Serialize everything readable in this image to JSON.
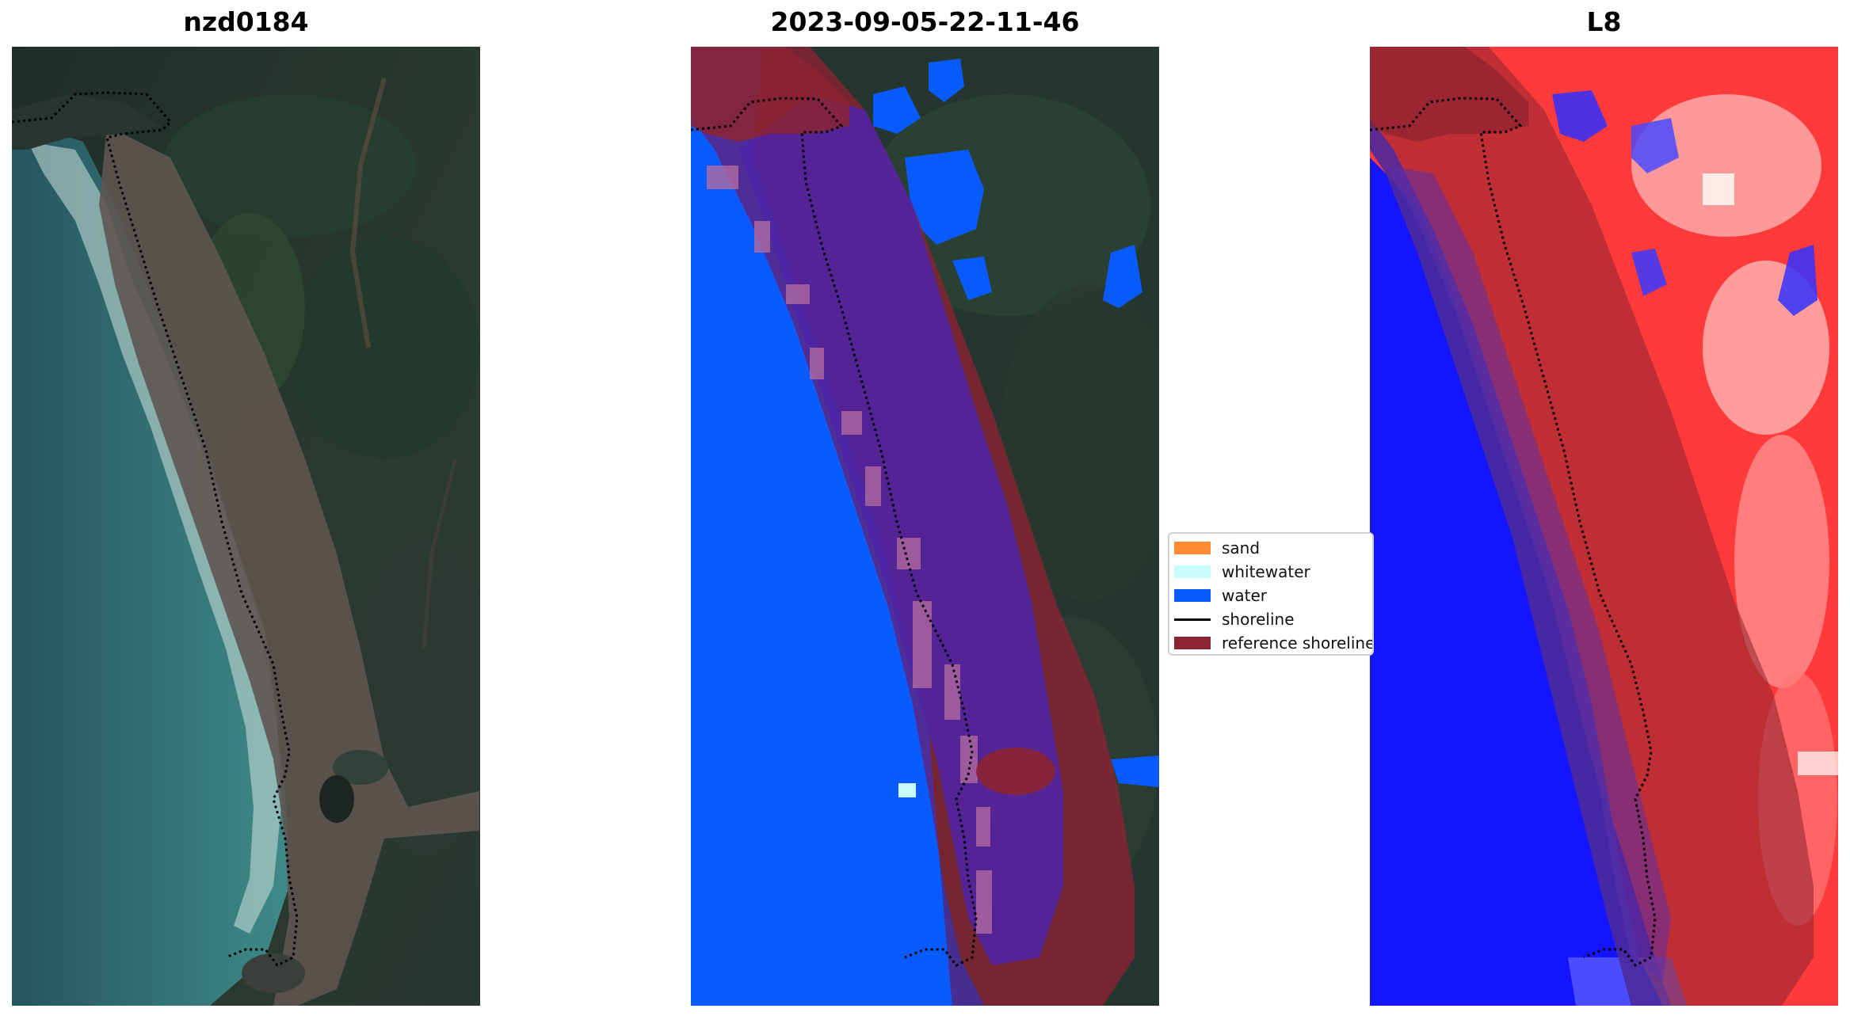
{
  "panels": [
    {
      "title": "nzd0184"
    },
    {
      "title": "2023-09-05-22-11-46"
    },
    {
      "title": "L8"
    }
  ],
  "legend": {
    "items": [
      {
        "label": "sand",
        "color": "#ff8c35"
      },
      {
        "label": "whitewater",
        "color": "#c8fcff"
      },
      {
        "label": "water",
        "color": "#0a5bff"
      },
      {
        "label": "shoreline",
        "color": "#000000"
      },
      {
        "label": "reference shoreline",
        "color": "#8b2332"
      }
    ]
  },
  "colors": {
    "water_class": "#0a5bff",
    "reference_buffer": "#8b2332",
    "index_high": "#ff2a2a",
    "index_low": "#1414ff",
    "shoreline": "#000000"
  }
}
